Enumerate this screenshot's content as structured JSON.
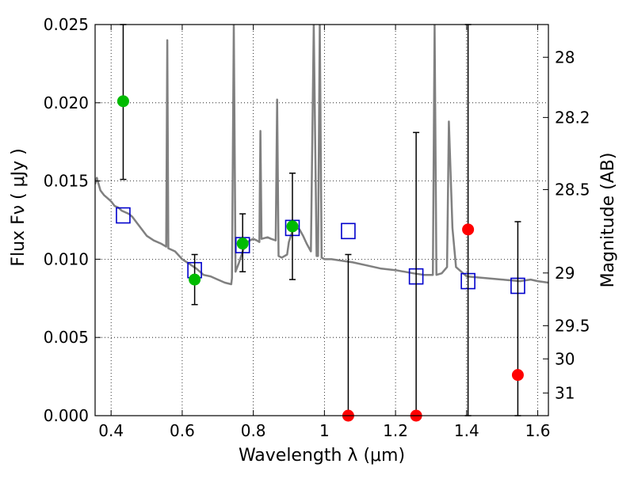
{
  "chart_data": {
    "type": "scatter",
    "xlabel": "Wavelength  λ (μm)",
    "ylabel": "Flux  Fν  ( μJy )",
    "y2label": "Magnitude (AB)",
    "xlim": [
      0.355,
      1.63
    ],
    "ylim": [
      0.0,
      0.025
    ],
    "grid": true,
    "x_ticks": [
      {
        "value": 0.4,
        "label": "0.4"
      },
      {
        "value": 0.6,
        "label": "0.6"
      },
      {
        "value": 0.8,
        "label": "0.8"
      },
      {
        "value": 1.0,
        "label": "1"
      },
      {
        "value": 1.2,
        "label": "1.2"
      },
      {
        "value": 1.4,
        "label": "1.4"
      },
      {
        "value": 1.6,
        "label": "1.6"
      }
    ],
    "y_ticks": [
      {
        "value": 0.0,
        "label": "0.000"
      },
      {
        "value": 0.005,
        "label": "0.005"
      },
      {
        "value": 0.01,
        "label": "0.010"
      },
      {
        "value": 0.015,
        "label": "0.015"
      },
      {
        "value": 0.02,
        "label": "0.020"
      },
      {
        "value": 0.025,
        "label": "0.025"
      }
    ],
    "y2_ticks": [
      {
        "label": "28",
        "flux": 0.02291
      },
      {
        "label": "28.2",
        "flux": 0.01906
      },
      {
        "label": "28.5",
        "flux": 0.01445
      },
      {
        "label": "29",
        "flux": 0.00912
      },
      {
        "label": "29.5",
        "flux": 0.00575
      },
      {
        "label": "30",
        "flux": 0.00363
      },
      {
        "label": "31",
        "flux": 0.00145
      }
    ],
    "series": [
      {
        "kind": "model-sed",
        "color": "#808080",
        "points": [
          [
            0.355,
            0.0148
          ],
          [
            0.36,
            0.0152
          ],
          [
            0.37,
            0.0144
          ],
          [
            0.38,
            0.0141
          ],
          [
            0.39,
            0.0139
          ],
          [
            0.4,
            0.0137
          ],
          [
            0.41,
            0.0134
          ],
          [
            0.42,
            0.0133
          ],
          [
            0.43,
            0.0131
          ],
          [
            0.44,
            0.013
          ],
          [
            0.45,
            0.0129
          ],
          [
            0.46,
            0.0127
          ],
          [
            0.47,
            0.0124
          ],
          [
            0.48,
            0.0121
          ],
          [
            0.5,
            0.0115
          ],
          [
            0.52,
            0.0112
          ],
          [
            0.54,
            0.011
          ],
          [
            0.555,
            0.0108
          ],
          [
            0.558,
            0.024
          ],
          [
            0.561,
            0.0107
          ],
          [
            0.58,
            0.0105
          ],
          [
            0.6,
            0.01
          ],
          [
            0.62,
            0.0097
          ],
          [
            0.64,
            0.0094
          ],
          [
            0.66,
            0.009
          ],
          [
            0.68,
            0.0089
          ],
          [
            0.7,
            0.0087
          ],
          [
            0.72,
            0.0085
          ],
          [
            0.738,
            0.0084
          ],
          [
            0.74,
            0.0088
          ],
          [
            0.745,
            0.025
          ],
          [
            0.75,
            0.0092
          ],
          [
            0.76,
            0.0098
          ],
          [
            0.77,
            0.0105
          ],
          [
            0.78,
            0.011
          ],
          [
            0.79,
            0.0112
          ],
          [
            0.8,
            0.0113
          ],
          [
            0.81,
            0.0112
          ],
          [
            0.817,
            0.0111
          ],
          [
            0.82,
            0.0182
          ],
          [
            0.823,
            0.0113
          ],
          [
            0.84,
            0.0114
          ],
          [
            0.85,
            0.0113
          ],
          [
            0.863,
            0.0112
          ],
          [
            0.867,
            0.0202
          ],
          [
            0.871,
            0.0102
          ],
          [
            0.88,
            0.0101
          ],
          [
            0.895,
            0.0103
          ],
          [
            0.9,
            0.0111
          ],
          [
            0.91,
            0.0118
          ],
          [
            0.92,
            0.012
          ],
          [
            0.93,
            0.0119
          ],
          [
            0.94,
            0.0115
          ],
          [
            0.95,
            0.011
          ],
          [
            0.962,
            0.0105
          ],
          [
            0.97,
            0.025
          ],
          [
            0.978,
            0.0102
          ],
          [
            0.982,
            0.0102
          ],
          [
            0.987,
            0.025
          ],
          [
            0.992,
            0.0101
          ],
          [
            1.0,
            0.01
          ],
          [
            1.02,
            0.01
          ],
          [
            1.05,
            0.0099
          ],
          [
            1.08,
            0.0098
          ],
          [
            1.12,
            0.0096
          ],
          [
            1.16,
            0.0094
          ],
          [
            1.2,
            0.0093
          ],
          [
            1.25,
            0.0091
          ],
          [
            1.28,
            0.009
          ],
          [
            1.305,
            0.009
          ],
          [
            1.31,
            0.025
          ],
          [
            1.315,
            0.009
          ],
          [
            1.33,
            0.0091
          ],
          [
            1.345,
            0.0095
          ],
          [
            1.35,
            0.0188
          ],
          [
            1.36,
            0.012
          ],
          [
            1.37,
            0.0095
          ],
          [
            1.4,
            0.0089
          ],
          [
            1.45,
            0.0088
          ],
          [
            1.5,
            0.0087
          ],
          [
            1.55,
            0.0086
          ],
          [
            1.58,
            0.0087
          ],
          [
            1.6,
            0.0086
          ],
          [
            1.63,
            0.0085
          ]
        ]
      },
      {
        "kind": "model-photometry",
        "marker": "open-square",
        "color": "#0000cc",
        "points": [
          [
            0.434,
            0.0128
          ],
          [
            0.635,
            0.0093
          ],
          [
            0.77,
            0.0109
          ],
          [
            0.91,
            0.012
          ],
          [
            1.067,
            0.0118
          ],
          [
            1.258,
            0.0089
          ],
          [
            1.404,
            0.0086
          ],
          [
            1.544,
            0.0083
          ]
        ]
      },
      {
        "kind": "detection",
        "marker": "filled-circle",
        "color": "#00bb00",
        "points": [
          {
            "x": 0.434,
            "y": 0.0201,
            "lo": 0.0151,
            "hi": 0.0252
          },
          {
            "x": 0.635,
            "y": 0.0087,
            "lo": 0.0071,
            "hi": 0.0103
          },
          {
            "x": 0.77,
            "y": 0.011,
            "lo": 0.0092,
            "hi": 0.0129
          },
          {
            "x": 0.91,
            "y": 0.0121,
            "lo": 0.0087,
            "hi": 0.0155
          }
        ]
      },
      {
        "kind": "non-detection",
        "marker": "filled-circle",
        "color": "#ff0000",
        "points": [
          {
            "x": 1.067,
            "y": 0.0,
            "lo": 0.0,
            "hi": 0.0103
          },
          {
            "x": 1.258,
            "y": 0.0,
            "lo": 0.0,
            "hi": 0.0181
          },
          {
            "x": 1.404,
            "y": 0.0119,
            "lo": 0.0,
            "hi": 0.0252
          },
          {
            "x": 1.544,
            "y": 0.0026,
            "lo": 0.0,
            "hi": 0.0124
          }
        ]
      }
    ]
  }
}
